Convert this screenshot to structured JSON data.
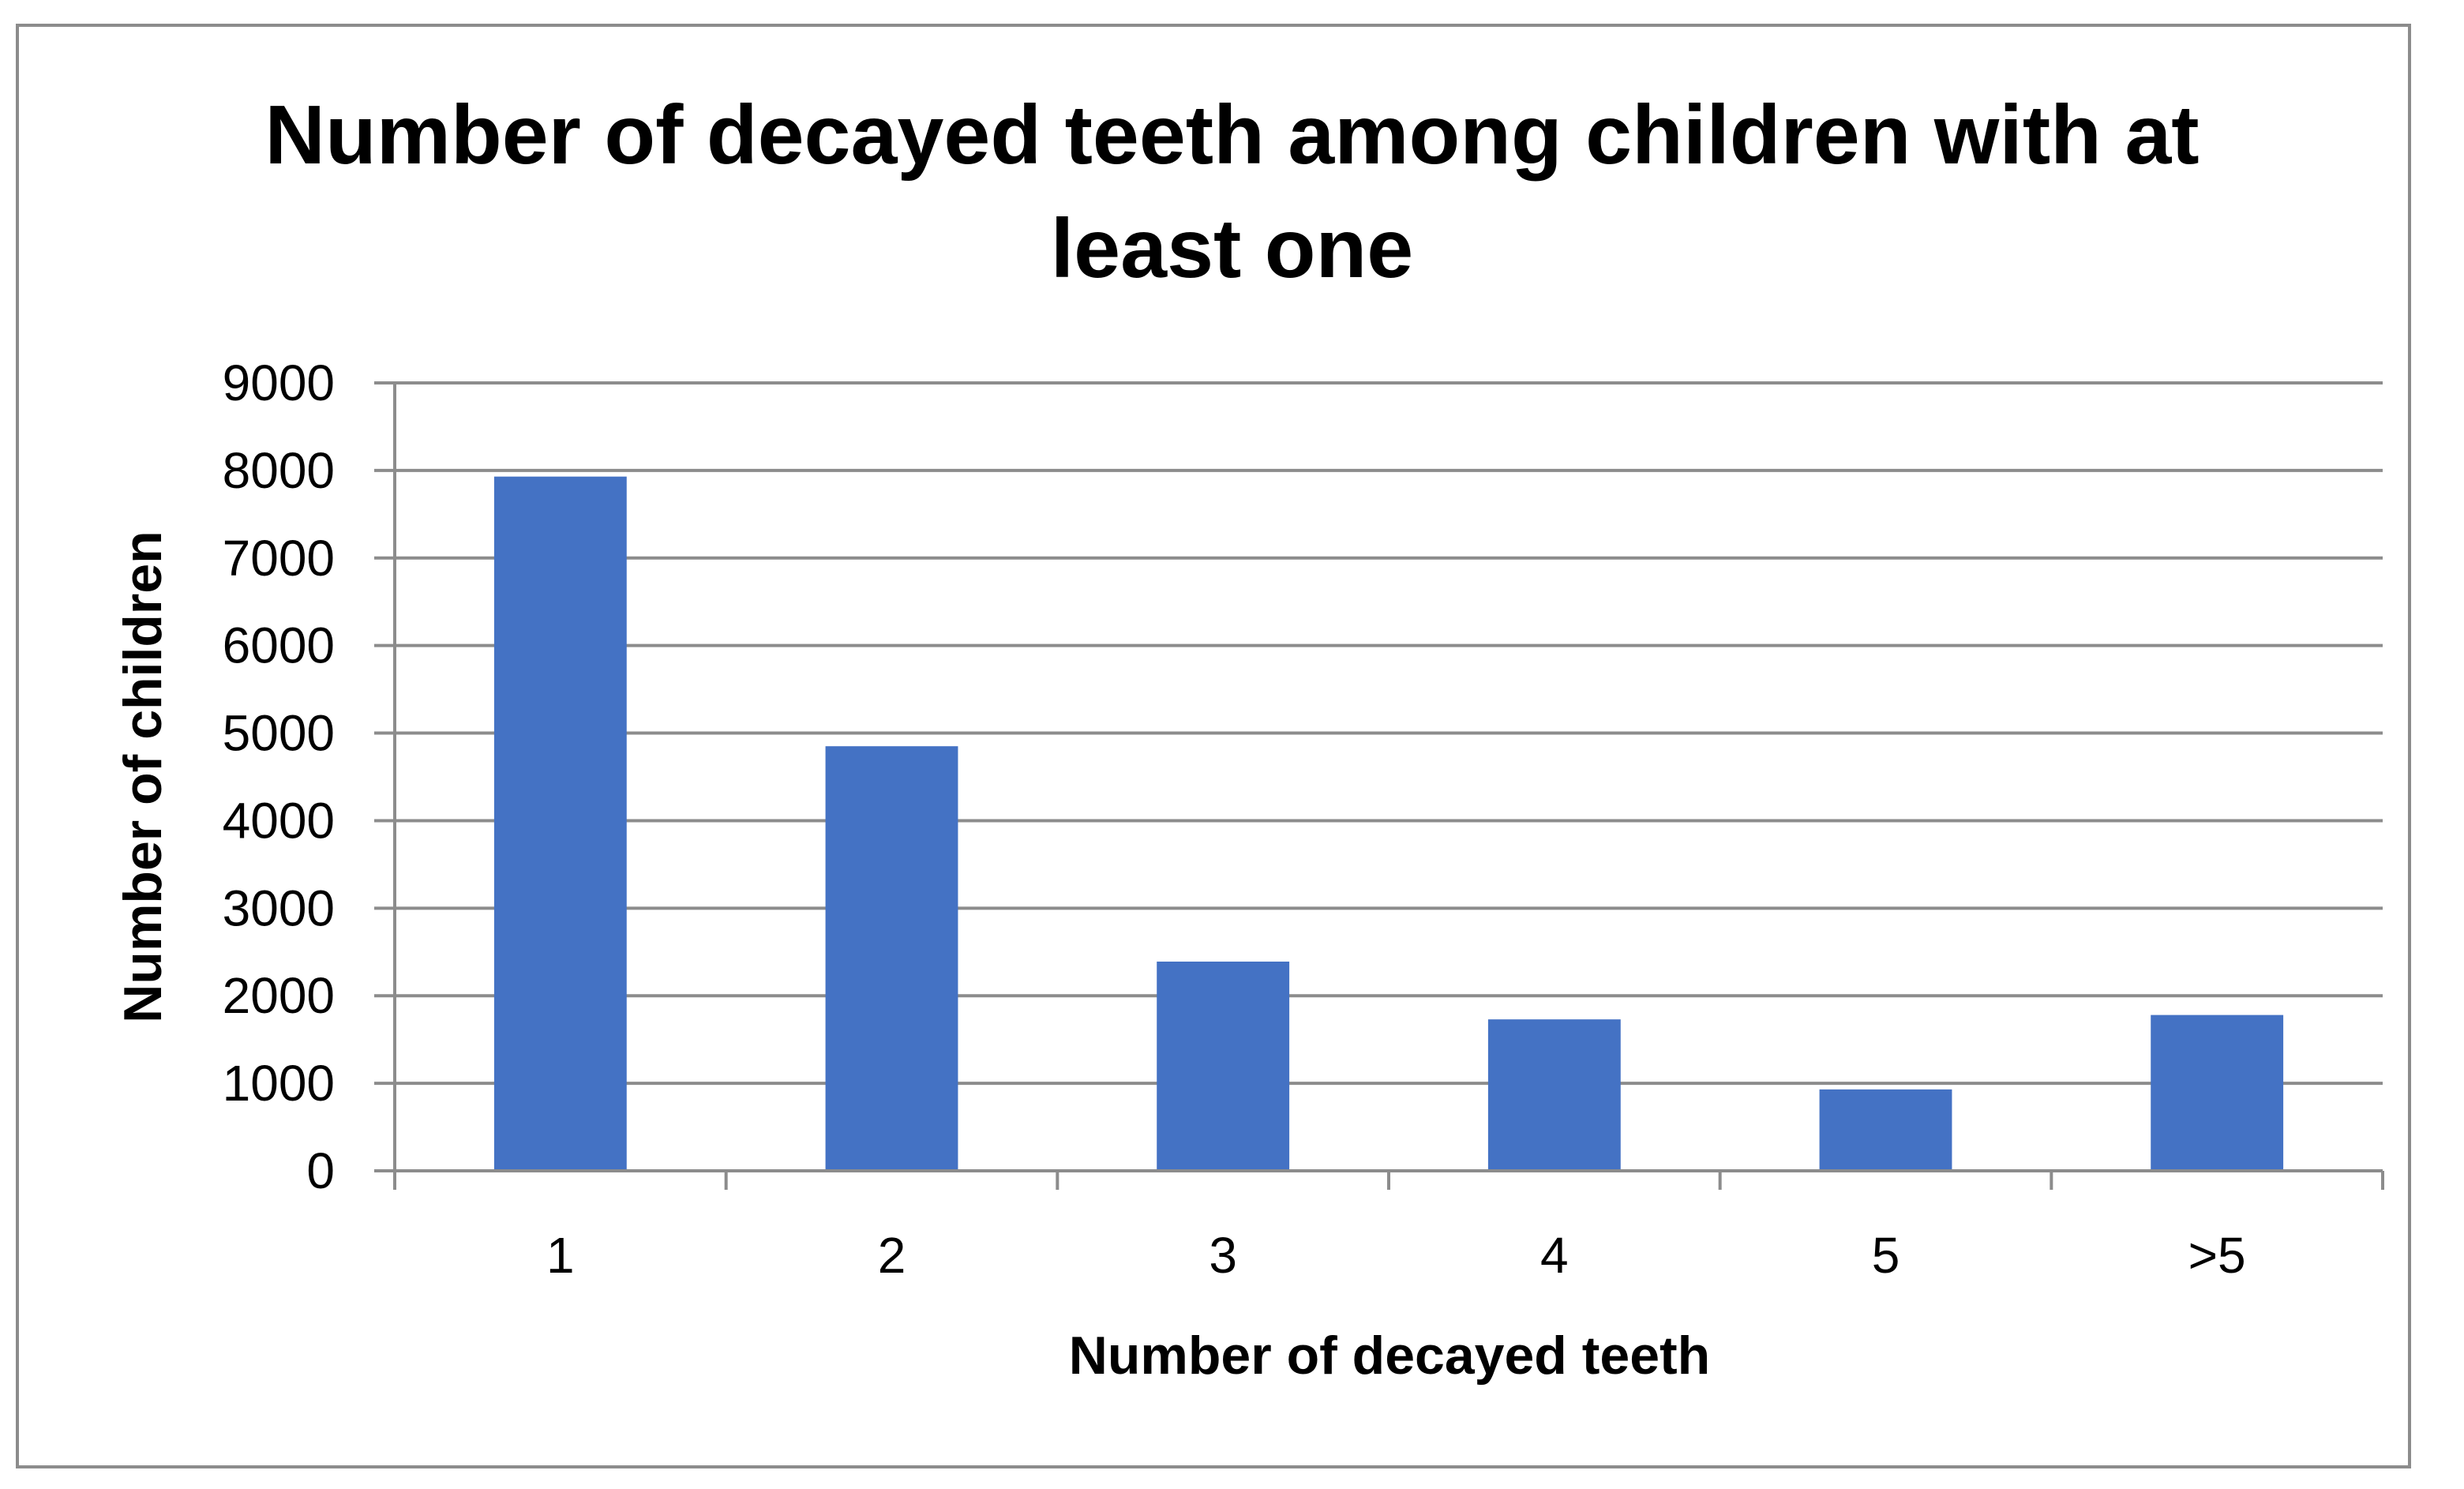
{
  "chart_data": {
    "type": "bar",
    "title_lines": [
      "Number of decayed teeth among children with at",
      "least one"
    ],
    "xlabel": "Number of decayed teeth",
    "ylabel": "Number of children",
    "categories": [
      "1",
      "2",
      "3",
      "4",
      "5",
      ">5"
    ],
    "values": [
      7930,
      4850,
      2390,
      1730,
      930,
      1780
    ],
    "ylim": [
      0,
      9000
    ],
    "yticks": [
      "0",
      "1000",
      "2000",
      "3000",
      "4000",
      "5000",
      "6000",
      "7000",
      "8000",
      "9000"
    ],
    "grid": true,
    "legend": "none",
    "bar_color": "#4472c4",
    "grid_color": "#8c8c8c"
  }
}
